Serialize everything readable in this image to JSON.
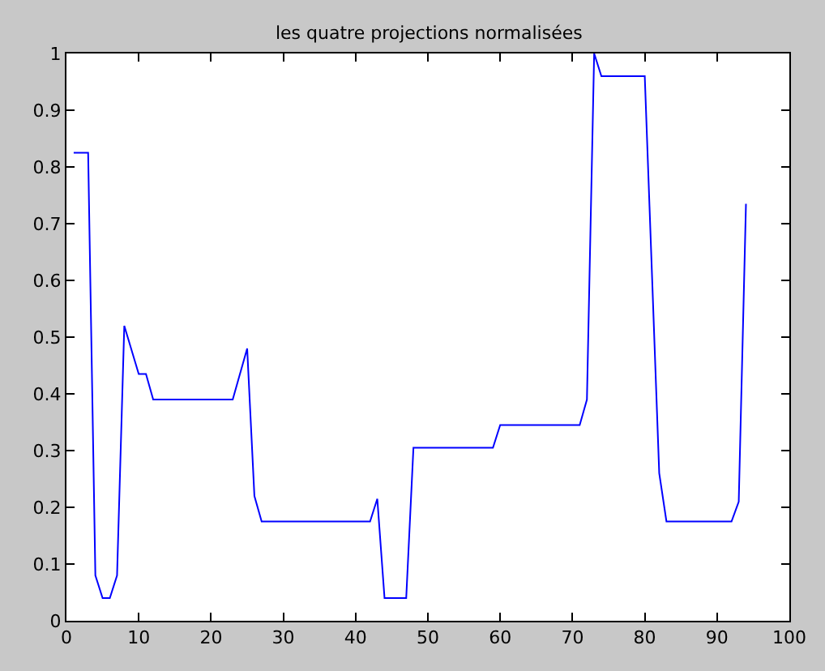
{
  "chart_data": {
    "type": "line",
    "title": "les quatre projections normalisées",
    "x": [
      1,
      3,
      4,
      5,
      6,
      7,
      8,
      10,
      11,
      12,
      23,
      25,
      26,
      27,
      42,
      43,
      44,
      47,
      48,
      59,
      60,
      71,
      72,
      73,
      74,
      80,
      82,
      83,
      92,
      93,
      94
    ],
    "series": [
      {
        "color": "#0000ff",
        "values": [
          0.825,
          0.825,
          0.08,
          0.04,
          0.04,
          0.08,
          0.52,
          0.435,
          0.435,
          0.39,
          0.39,
          0.48,
          0.22,
          0.175,
          0.175,
          0.215,
          0.04,
          0.04,
          0.305,
          0.305,
          0.345,
          0.345,
          0.39,
          1.0,
          0.96,
          0.96,
          0.26,
          0.175,
          0.175,
          0.21,
          0.735
        ]
      }
    ],
    "xlim": [
      0,
      100
    ],
    "xticks": [
      0,
      10,
      20,
      30,
      40,
      50,
      60,
      70,
      80,
      90,
      100
    ],
    "ylim": [
      0,
      1
    ],
    "yticks": [
      0,
      0.1,
      0.2,
      0.3,
      0.4,
      0.5,
      0.6,
      0.7,
      0.8,
      0.9,
      1
    ],
    "line_style": "solid"
  }
}
